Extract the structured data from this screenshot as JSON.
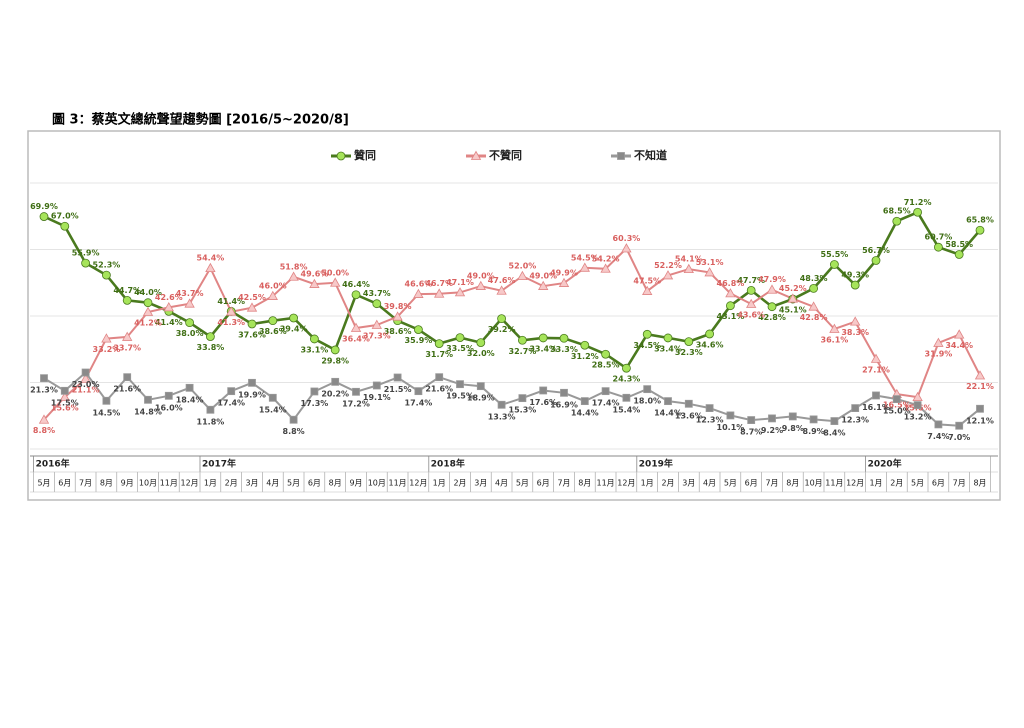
{
  "chart_data": {
    "type": "line",
    "title": "圖 3：蔡英文總統聲望趨勢圖  [2016/5~2020/8]",
    "categories": [
      "5月",
      "6月",
      "7月",
      "8月",
      "9月",
      "10月",
      "11月",
      "12月",
      "1月",
      "2月",
      "3月",
      "4月",
      "5月",
      "6月",
      "8月",
      "9月",
      "10月",
      "11月",
      "12月",
      "1月",
      "2月",
      "3月",
      "4月",
      "5月",
      "6月",
      "7月",
      "8月",
      "11月",
      "12月",
      "1月",
      "2月",
      "3月",
      "4月",
      "5月",
      "6月",
      "7月",
      "8月",
      "10月",
      "11月",
      "12月",
      "1月",
      "2月",
      "5月",
      "6月",
      "7月",
      "8月"
    ],
    "year_labels": [
      "2016年",
      null,
      null,
      null,
      null,
      null,
      null,
      null,
      "2017年",
      null,
      null,
      null,
      null,
      null,
      null,
      null,
      null,
      null,
      null,
      "2018年",
      null,
      null,
      null,
      null,
      null,
      null,
      null,
      null,
      null,
      "2019年",
      null,
      null,
      null,
      null,
      null,
      null,
      null,
      null,
      null,
      null,
      "2020年",
      null,
      null,
      null,
      null,
      null
    ],
    "ylim": [
      0,
      80
    ],
    "yticks": [
      0,
      20,
      40,
      60,
      80
    ],
    "grid": true,
    "series": [
      {
        "name": "贊同",
        "color": "#4a7a1e",
        "marker": "circle",
        "marker_color": "#a6e45a",
        "label_color": "#3f6e14",
        "values": [
          69.9,
          67.0,
          55.9,
          52.3,
          44.7,
          44.0,
          41.4,
          38.0,
          33.8,
          41.4,
          37.6,
          38.6,
          39.4,
          33.1,
          29.8,
          46.4,
          43.7,
          38.6,
          35.9,
          31.7,
          33.5,
          32.0,
          39.2,
          32.7,
          33.4,
          33.3,
          31.2,
          28.5,
          24.3,
          34.5,
          33.4,
          32.3,
          34.6,
          43.1,
          47.7,
          42.8,
          45.1,
          48.3,
          55.5,
          49.3,
          56.7,
          68.5,
          71.2,
          60.7,
          58.5,
          65.8
        ],
        "value_labels": [
          "69.9%",
          "67.0%",
          "55.9%",
          "52.3%",
          "44.7%",
          "44.0%",
          "41.4%",
          "38.0%",
          "33.8%",
          "41.4%",
          "37.6%",
          "38.6%",
          "39.4%",
          "33.1%",
          "29.8%",
          "46.4%",
          "43.7%",
          "38.6%",
          "35.9%",
          "31.7%",
          "33.5%",
          "32.0%",
          "39.2%",
          "32.7%",
          "33.4%",
          "33.3%",
          "31.2%",
          "28.5%",
          "24.3%",
          "34.5%",
          "33.4%",
          "32.3%",
          "34.6%",
          "43.1%",
          "47.7%",
          "42.8%",
          "45.1%",
          "48.3%",
          "55.5%",
          "49.3%",
          "56.7%",
          "68.5%",
          "71.2%",
          "60.7%",
          "58.5%",
          "65.8%"
        ]
      },
      {
        "name": "不贊同",
        "color": "#e08585",
        "marker": "triangle",
        "marker_color": "#f7c9c9",
        "label_color": "#d9605f",
        "values": [
          8.8,
          15.6,
          21.1,
          33.2,
          33.7,
          41.2,
          42.6,
          43.7,
          54.4,
          41.3,
          42.5,
          46.0,
          51.8,
          49.6,
          50.0,
          36.4,
          37.3,
          39.8,
          46.6,
          46.7,
          47.1,
          49.0,
          47.6,
          52.0,
          49.0,
          49.9,
          54.5,
          54.2,
          60.3,
          47.5,
          52.2,
          54.1,
          53.1,
          46.8,
          43.6,
          47.9,
          45.2,
          42.8,
          36.1,
          38.3,
          27.1,
          16.5,
          15.6,
          31.9,
          34.4,
          22.1
        ],
        "value_labels": [
          "8.8%",
          "15.6%",
          "21.1%",
          "33.2%",
          "33.7%",
          "41.2%",
          "42.6%",
          "43.7%",
          "54.4%",
          "41.3%",
          "42.5%",
          "46.0%",
          "51.8%",
          "49.6%",
          "50.0%",
          "36.4%",
          "37.3%",
          "39.8%",
          "46.6%",
          "46.7%",
          "47.1%",
          "49.0%",
          "47.6%",
          "52.0%",
          "49.0%",
          "49.9%",
          "54.5%",
          "54.2%",
          "60.3%",
          "47.5%",
          "52.2%",
          "54.1%",
          "53.1%",
          "46.8%",
          "43.6%",
          "47.9%",
          "45.2%",
          "42.8%",
          "36.1%",
          "38.3%",
          "27.1%",
          "16.5%",
          "15.6%",
          "31.9%",
          "34.4%",
          "22.1%"
        ]
      },
      {
        "name": "不知道",
        "color": "#999999",
        "marker": "square",
        "marker_color": "#8a8a8a",
        "label_color": "#444444",
        "values": [
          21.3,
          17.5,
          23.0,
          14.5,
          21.6,
          14.8,
          16.0,
          18.4,
          11.8,
          17.4,
          19.9,
          15.4,
          8.8,
          17.3,
          20.2,
          17.2,
          19.1,
          21.5,
          17.4,
          21.6,
          19.5,
          18.9,
          13.3,
          15.3,
          17.6,
          16.9,
          14.4,
          17.4,
          15.4,
          18.0,
          14.4,
          13.6,
          12.3,
          10.1,
          8.7,
          9.2,
          9.8,
          8.9,
          8.4,
          12.3,
          16.1,
          15.0,
          13.2,
          7.4,
          7.0,
          12.1
        ],
        "value_labels": [
          "21.3%",
          "17.5%",
          "23.0%",
          "14.5%",
          "21.6%",
          "14.8%",
          "16.0%",
          "18.4%",
          "11.8%",
          "17.4%",
          "19.9%",
          "15.4%",
          "8.8%",
          "17.3%",
          "20.2%",
          "17.2%",
          "19.1%",
          "21.5%",
          "17.4%",
          "21.6%",
          "19.5%",
          "18.9%",
          "13.3%",
          "15.3%",
          "17.6%",
          "16.9%",
          "14.4%",
          "17.4%",
          "15.4%",
          "18.0%",
          "14.4%",
          "13.6%",
          "12.3%",
          "10.1%",
          "8.7%",
          "9.2%",
          "9.8%",
          "8.9%",
          "8.4%",
          "12.3%",
          "16.1%",
          "15.0%",
          "13.2%",
          "7.4%",
          "7.0%",
          "12.1%"
        ]
      }
    ]
  }
}
